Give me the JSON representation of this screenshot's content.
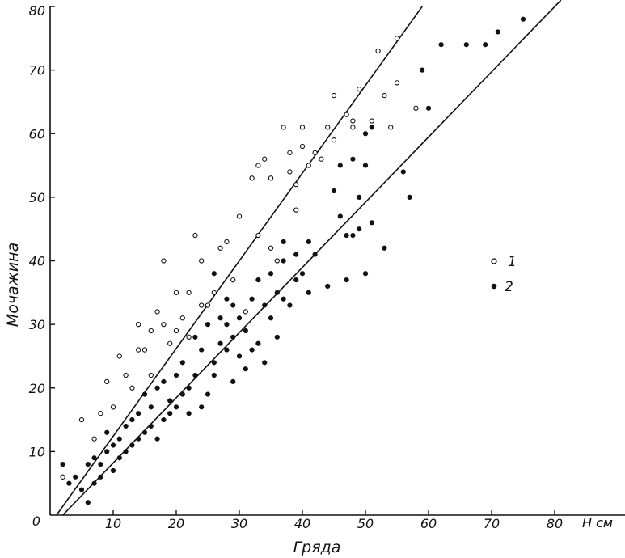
{
  "chart_data": {
    "type": "scatter",
    "title": "",
    "xlabel": "Гряда",
    "ylabel": "Мочажина",
    "x_unit_label": "H см",
    "xlim": [
      0,
      80
    ],
    "ylim": [
      0,
      80
    ],
    "x_ticks": [
      0,
      10,
      20,
      30,
      40,
      50,
      60,
      70,
      80
    ],
    "y_ticks": [
      10,
      20,
      30,
      40,
      50,
      60,
      70,
      80
    ],
    "origin_label": "0",
    "grid": false,
    "legend_position": "right",
    "colors": {
      "axis": "#111111",
      "series_1_marker": "#111111",
      "series_2_marker": "#111111"
    },
    "series": [
      {
        "name": "1",
        "marker": "open-circle",
        "points": [
          [
            2,
            6
          ],
          [
            5,
            15
          ],
          [
            7,
            12
          ],
          [
            8,
            16
          ],
          [
            9,
            21
          ],
          [
            10,
            17
          ],
          [
            11,
            25
          ],
          [
            12,
            22
          ],
          [
            13,
            20
          ],
          [
            14,
            26
          ],
          [
            14,
            30
          ],
          [
            15,
            26
          ],
          [
            16,
            22
          ],
          [
            16,
            29
          ],
          [
            17,
            32
          ],
          [
            18,
            40
          ],
          [
            18,
            30
          ],
          [
            19,
            27
          ],
          [
            20,
            35
          ],
          [
            20,
            29
          ],
          [
            21,
            31
          ],
          [
            22,
            35
          ],
          [
            22,
            28
          ],
          [
            23,
            44
          ],
          [
            24,
            40
          ],
          [
            24,
            33
          ],
          [
            25,
            33
          ],
          [
            26,
            35
          ],
          [
            27,
            42
          ],
          [
            28,
            43
          ],
          [
            29,
            37
          ],
          [
            30,
            47
          ],
          [
            31,
            32
          ],
          [
            32,
            53
          ],
          [
            33,
            55
          ],
          [
            33,
            44
          ],
          [
            34,
            56
          ],
          [
            35,
            53
          ],
          [
            35,
            42
          ],
          [
            36,
            40
          ],
          [
            37,
            61
          ],
          [
            38,
            57
          ],
          [
            38,
            54
          ],
          [
            39,
            48
          ],
          [
            39,
            52
          ],
          [
            40,
            58
          ],
          [
            40,
            61
          ],
          [
            41,
            55
          ],
          [
            42,
            57
          ],
          [
            43,
            56
          ],
          [
            44,
            61
          ],
          [
            45,
            66
          ],
          [
            45,
            59
          ],
          [
            47,
            63
          ],
          [
            48,
            61
          ],
          [
            48,
            62
          ],
          [
            49,
            67
          ],
          [
            51,
            62
          ],
          [
            52,
            73
          ],
          [
            53,
            66
          ],
          [
            54,
            61
          ],
          [
            55,
            75
          ],
          [
            55,
            68
          ],
          [
            58,
            64
          ]
        ]
      },
      {
        "name": "2",
        "marker": "filled-circle",
        "points": [
          [
            2,
            8
          ],
          [
            3,
            5
          ],
          [
            4,
            6
          ],
          [
            5,
            4
          ],
          [
            6,
            2
          ],
          [
            6,
            8
          ],
          [
            7,
            5
          ],
          [
            7,
            9
          ],
          [
            8,
            6
          ],
          [
            8,
            8
          ],
          [
            9,
            10
          ],
          [
            9,
            13
          ],
          [
            10,
            7
          ],
          [
            10,
            11
          ],
          [
            11,
            9
          ],
          [
            11,
            12
          ],
          [
            12,
            10
          ],
          [
            12,
            14
          ],
          [
            13,
            11
          ],
          [
            13,
            15
          ],
          [
            14,
            12
          ],
          [
            14,
            16
          ],
          [
            15,
            13
          ],
          [
            15,
            19
          ],
          [
            16,
            14
          ],
          [
            16,
            17
          ],
          [
            17,
            12
          ],
          [
            17,
            20
          ],
          [
            18,
            15
          ],
          [
            18,
            21
          ],
          [
            19,
            16
          ],
          [
            19,
            18
          ],
          [
            20,
            17
          ],
          [
            20,
            22
          ],
          [
            21,
            19
          ],
          [
            21,
            24
          ],
          [
            22,
            20
          ],
          [
            22,
            16
          ],
          [
            23,
            22
          ],
          [
            23,
            28
          ],
          [
            24,
            17
          ],
          [
            24,
            26
          ],
          [
            25,
            19
          ],
          [
            25,
            30
          ],
          [
            26,
            22
          ],
          [
            26,
            24
          ],
          [
            26,
            38
          ],
          [
            27,
            27
          ],
          [
            27,
            31
          ],
          [
            28,
            26
          ],
          [
            28,
            30
          ],
          [
            28,
            34
          ],
          [
            29,
            21
          ],
          [
            29,
            28
          ],
          [
            29,
            33
          ],
          [
            30,
            25
          ],
          [
            30,
            31
          ],
          [
            31,
            23
          ],
          [
            31,
            29
          ],
          [
            32,
            26
          ],
          [
            32,
            34
          ],
          [
            33,
            27
          ],
          [
            33,
            37
          ],
          [
            34,
            24
          ],
          [
            34,
            33
          ],
          [
            35,
            31
          ],
          [
            35,
            38
          ],
          [
            36,
            28
          ],
          [
            36,
            35
          ],
          [
            37,
            34
          ],
          [
            37,
            40
          ],
          [
            37,
            43
          ],
          [
            38,
            33
          ],
          [
            39,
            37
          ],
          [
            39,
            41
          ],
          [
            40,
            38
          ],
          [
            41,
            35
          ],
          [
            41,
            43
          ],
          [
            42,
            41
          ],
          [
            44,
            36
          ],
          [
            45,
            51
          ],
          [
            46,
            47
          ],
          [
            46,
            55
          ],
          [
            47,
            44
          ],
          [
            47,
            37
          ],
          [
            48,
            44
          ],
          [
            48,
            56
          ],
          [
            49,
            45
          ],
          [
            49,
            50
          ],
          [
            50,
            38
          ],
          [
            50,
            55
          ],
          [
            50,
            60
          ],
          [
            51,
            46
          ],
          [
            51,
            61
          ],
          [
            53,
            42
          ],
          [
            56,
            54
          ],
          [
            57,
            50
          ],
          [
            59,
            70
          ],
          [
            60,
            64
          ],
          [
            62,
            74
          ],
          [
            66,
            74
          ],
          [
            69,
            74
          ],
          [
            71,
            76
          ],
          [
            75,
            78
          ]
        ]
      }
    ],
    "fit_lines": [
      {
        "series": "1",
        "from": [
          1,
          0
        ],
        "to": [
          59,
          80
        ]
      },
      {
        "series": "2",
        "from": [
          2,
          0
        ],
        "to": [
          81,
          81
        ]
      }
    ]
  }
}
